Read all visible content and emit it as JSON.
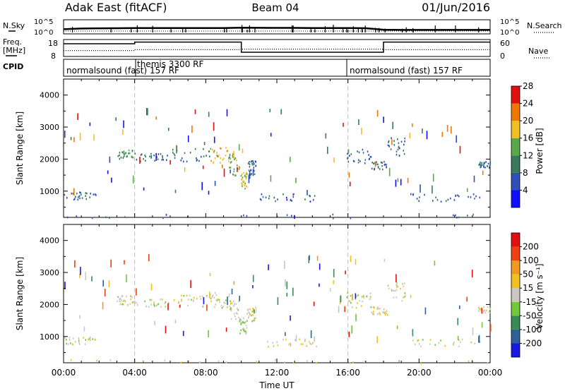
{
  "header": {
    "radar": "Adak East (fitACF)",
    "beam": "Beam 04",
    "date": "01/Jun/2016"
  },
  "left_labels": {
    "nsky": "N.Sky",
    "freq": "Freq.",
    "freq_unit": "[MHz]",
    "cpid": "CPID"
  },
  "right_labels": {
    "nsearch": "N.Search",
    "nave": "Nave"
  },
  "noise_ticks": {
    "left_top": "10^5",
    "left_bottom": "10^0",
    "right_top": "10^5",
    "right_bottom": "10^0"
  },
  "freq_ticks": {
    "left_top": "18",
    "left_bottom": "8",
    "right_top": "60",
    "right_bottom": "0"
  },
  "cpid_segments": [
    {
      "label": "normalsound (fast) 157 RF"
    },
    {
      "label": "themis 3300 RF"
    },
    {
      "label": "normalsound (fast) 157 RF"
    }
  ],
  "colorbars": {
    "power": {
      "title": "Power [dB]",
      "ticks": [
        "4",
        "8",
        "12",
        "16",
        "20",
        "24",
        "28"
      ],
      "colors": [
        "#1010ff",
        "#2e4fb8",
        "#3a7a5c",
        "#59a84a",
        "#f0c020",
        "#f07800",
        "#e01010"
      ]
    },
    "velocity": {
      "title": "Velocity [m s⁻¹]",
      "ticks": [
        "200",
        "100",
        "50",
        "15",
        "-15",
        "-50",
        "-100",
        "-200"
      ],
      "colors": [
        "#1818e0",
        "#30609a",
        "#3a8a58",
        "#72c83a",
        "#c8c8c0",
        "#f0c020",
        "#f09a20",
        "#f04010",
        "#e01010"
      ]
    }
  },
  "chart_data": [
    {
      "type": "line",
      "title": "N.Sky / N.Search",
      "x_unit": "hours UT",
      "ylim": [
        1,
        100000
      ],
      "log_scale": true,
      "series": [
        {
          "name": "N.Sky",
          "x": [
            0,
            1,
            2,
            3,
            4,
            5,
            6,
            7,
            8,
            9,
            10,
            11,
            12,
            13,
            14,
            15,
            16,
            17,
            18,
            19,
            20,
            21,
            22,
            23,
            24
          ],
          "values": [
            45,
            80,
            95,
            100,
            110,
            110,
            115,
            120,
            120,
            110,
            160,
            140,
            130,
            130,
            120,
            115,
            110,
            100,
            30,
            25,
            25,
            25,
            25,
            25,
            25
          ]
        }
      ]
    },
    {
      "type": "line",
      "title": "Freq. / Nave",
      "x_unit": "hours UT",
      "ylim": [
        8,
        18
      ],
      "series": [
        {
          "name": "Freq.",
          "x": [
            0,
            4,
            4,
            10,
            10,
            18,
            18,
            24
          ],
          "values": [
            15.5,
            15.5,
            16.5,
            16.5,
            10.5,
            10.5,
            16.5,
            16.5
          ]
        },
        {
          "name": "Nave",
          "x": [
            0,
            4,
            4,
            10,
            10,
            18,
            18,
            24
          ],
          "values": [
            21,
            21,
            24,
            24,
            26,
            26,
            24,
            24
          ]
        }
      ]
    },
    {
      "type": "heatmap",
      "ylabel": "Slant Range [km]",
      "xlabel": "Time UT",
      "x_ticks": [
        "00:00",
        "04:00",
        "08:00",
        "12:00",
        "16:00",
        "20:00",
        "00:00"
      ],
      "y_ticks": [
        "1000",
        "2000",
        "3000",
        "4000"
      ],
      "ylim": [
        180,
        4500
      ],
      "x_range_hours": [
        0,
        24
      ],
      "colorbar": "power",
      "scatter_regions": [
        {
          "t": [
            0.0,
            1.8
          ],
          "r": [
            760,
            1000
          ],
          "level": 1.4
        },
        {
          "t": [
            3.0,
            3.9
          ],
          "r": [
            2000,
            2300
          ],
          "level": 2.3
        },
        {
          "t": [
            3.9,
            6.0
          ],
          "r": [
            1950,
            2200
          ],
          "level": 1.5
        },
        {
          "t": [
            6.0,
            8.2
          ],
          "r": [
            1950,
            2350
          ],
          "level": 1.8
        },
        {
          "t": [
            8.2,
            9.3
          ],
          "r": [
            1900,
            2400
          ],
          "level": 4.0
        },
        {
          "t": [
            9.3,
            9.9
          ],
          "r": [
            1500,
            2200
          ],
          "level": 3.0
        },
        {
          "t": [
            9.9,
            10.3
          ],
          "r": [
            1100,
            1600
          ],
          "level": 3.4
        },
        {
          "t": [
            10.3,
            10.8
          ],
          "r": [
            1500,
            2000
          ],
          "level": 1.5
        },
        {
          "t": [
            11.0,
            14.2
          ],
          "r": [
            700,
            950
          ],
          "level": 1.2
        },
        {
          "t": [
            15.9,
            17.3
          ],
          "r": [
            1900,
            2400
          ],
          "level": 1.4
        },
        {
          "t": [
            17.3,
            18.2
          ],
          "r": [
            1700,
            1950
          ],
          "level": 1.5
        },
        {
          "t": [
            18.2,
            19.2
          ],
          "r": [
            2100,
            2700
          ],
          "level": 1.6
        },
        {
          "t": [
            19.5,
            23.8
          ],
          "r": [
            700,
            950
          ],
          "level": 1.2
        },
        {
          "t": [
            23.3,
            24.0
          ],
          "r": [
            1750,
            1950
          ],
          "level": 1.3
        },
        {
          "t": [
            0.0,
            24.0
          ],
          "r": [
            180,
            300
          ],
          "level": 1.2
        }
      ]
    },
    {
      "type": "heatmap",
      "ylabel": "Slant Range [km]",
      "xlabel": "Time UT",
      "x_ticks": [
        "00:00",
        "04:00",
        "08:00",
        "12:00",
        "16:00",
        "20:00",
        "00:00"
      ],
      "y_ticks": [
        "1000",
        "2000",
        "3000",
        "4000"
      ],
      "ylim": [
        180,
        4500
      ],
      "x_range_hours": [
        0,
        24
      ],
      "colorbar": "velocity",
      "scatter_regions": [
        {
          "t": [
            0.0,
            1.8
          ],
          "r": [
            760,
            1000
          ],
          "level": 4
        },
        {
          "t": [
            3.0,
            3.9
          ],
          "r": [
            2000,
            2300
          ],
          "level": 4
        },
        {
          "t": [
            3.9,
            6.0
          ],
          "r": [
            1950,
            2200
          ],
          "level": 4
        },
        {
          "t": [
            6.0,
            8.2
          ],
          "r": [
            1950,
            2350
          ],
          "level": 4
        },
        {
          "t": [
            8.2,
            9.3
          ],
          "r": [
            1900,
            2400
          ],
          "level": 4
        },
        {
          "t": [
            9.3,
            9.9
          ],
          "r": [
            1500,
            2200
          ],
          "level": 4
        },
        {
          "t": [
            9.9,
            10.3
          ],
          "r": [
            1100,
            1600
          ],
          "level": 3.5
        },
        {
          "t": [
            10.3,
            10.8
          ],
          "r": [
            1500,
            2000
          ],
          "level": 4
        },
        {
          "t": [
            11.0,
            14.2
          ],
          "r": [
            700,
            950
          ],
          "level": 4.6
        },
        {
          "t": [
            15.9,
            17.3
          ],
          "r": [
            1900,
            2400
          ],
          "level": 4
        },
        {
          "t": [
            17.3,
            18.2
          ],
          "r": [
            1700,
            1950
          ],
          "level": 4.4
        },
        {
          "t": [
            18.2,
            19.2
          ],
          "r": [
            2100,
            2700
          ],
          "level": 4
        },
        {
          "t": [
            19.5,
            23.8
          ],
          "r": [
            700,
            950
          ],
          "level": 4
        },
        {
          "t": [
            23.3,
            24.0
          ],
          "r": [
            1750,
            1950
          ],
          "level": 4
        },
        {
          "t": [
            0.0,
            24.0
          ],
          "r": [
            180,
            300
          ],
          "level": 4.2
        }
      ]
    }
  ]
}
